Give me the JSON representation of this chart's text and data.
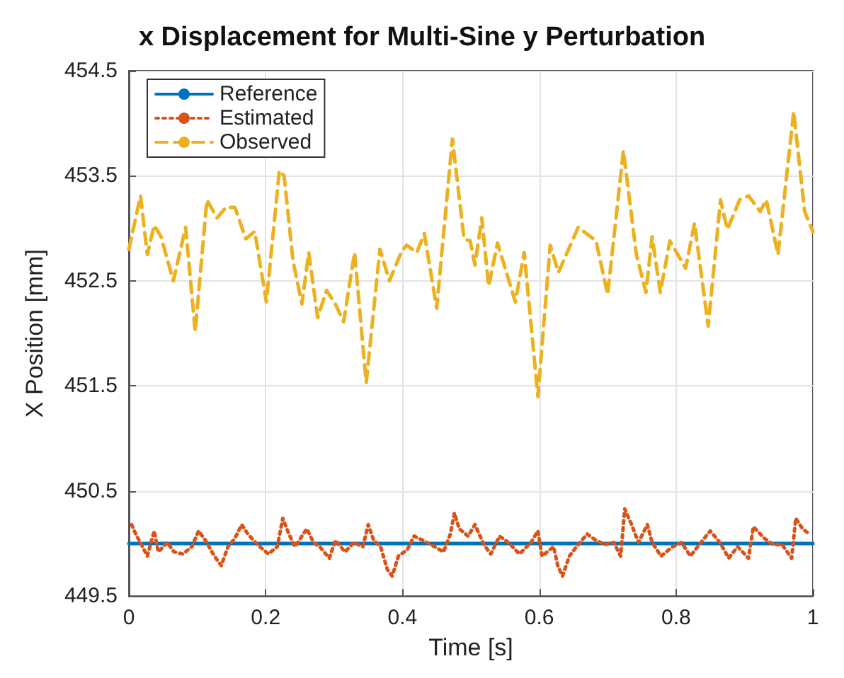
{
  "chart_data": {
    "type": "line",
    "title": "x Displacement for Multi-Sine y Perturbation",
    "xlabel": "Time [s]",
    "ylabel": "X Position [mm]",
    "xlim": [
      0,
      1
    ],
    "xticks": [
      0,
      0.2,
      0.4,
      0.6,
      0.8,
      1
    ],
    "ylim": [
      449.5,
      454.5
    ],
    "yticks": [
      449.5,
      450.5,
      451.5,
      452.5,
      453.5,
      454.5
    ],
    "grid": true,
    "legend": "top left",
    "marker": "none",
    "series": [
      {
        "name": "Reference",
        "color": "#0072bd",
        "line_style": "solid",
        "x": [
          0,
          1
        ],
        "values": [
          450,
          450
        ]
      },
      {
        "name": "Estimated",
        "color": "#d95319",
        "line_style": "dotted",
        "x": [
          0.004,
          0.01,
          0.02,
          0.027,
          0.037,
          0.043,
          0.056,
          0.066,
          0.079,
          0.092,
          0.102,
          0.112,
          0.125,
          0.135,
          0.145,
          0.155,
          0.165,
          0.174,
          0.188,
          0.204,
          0.217,
          0.225,
          0.234,
          0.243,
          0.26,
          0.27,
          0.279,
          0.293,
          0.302,
          0.316,
          0.329,
          0.342,
          0.35,
          0.358,
          0.368,
          0.378,
          0.385,
          0.394,
          0.407,
          0.417,
          0.43,
          0.447,
          0.46,
          0.47,
          0.476,
          0.483,
          0.496,
          0.506,
          0.519,
          0.529,
          0.542,
          0.555,
          0.571,
          0.588,
          0.598,
          0.604,
          0.621,
          0.627,
          0.634,
          0.644,
          0.657,
          0.67,
          0.683,
          0.696,
          0.709,
          0.719,
          0.725,
          0.735,
          0.745,
          0.758,
          0.765,
          0.778,
          0.795,
          0.808,
          0.821,
          0.834,
          0.85,
          0.864,
          0.877,
          0.89,
          0.906,
          0.913,
          0.929,
          0.942,
          0.955,
          0.969,
          0.975,
          0.985,
          0.995
        ],
        "values": [
          450.18,
          450.09,
          449.97,
          449.88,
          450.12,
          449.92,
          450.01,
          449.92,
          449.9,
          449.97,
          450.12,
          450.03,
          449.88,
          449.79,
          449.97,
          450.05,
          450.18,
          450.09,
          449.99,
          449.9,
          449.97,
          450.24,
          450.09,
          449.97,
          450.14,
          450.01,
          449.97,
          449.86,
          450.03,
          449.92,
          450.01,
          449.97,
          450.18,
          450.03,
          449.97,
          449.75,
          449.69,
          449.88,
          449.94,
          450.07,
          450.03,
          449.97,
          449.92,
          450.09,
          450.29,
          450.14,
          450.07,
          450.18,
          449.99,
          449.9,
          450.07,
          450.01,
          449.9,
          450.01,
          450.12,
          449.88,
          449.97,
          449.79,
          449.69,
          449.88,
          449.99,
          450.09,
          450.03,
          449.99,
          450.01,
          449.88,
          450.33,
          450.18,
          450.01,
          450.18,
          450.01,
          449.88,
          449.97,
          450.01,
          449.88,
          449.99,
          450.12,
          450.01,
          449.86,
          449.97,
          449.86,
          450.16,
          450.05,
          449.99,
          449.99,
          449.86,
          450.24,
          450.14,
          450.09
        ]
      },
      {
        "name": "Observed",
        "color": "#edb120",
        "line_style": "dashed",
        "x": [
          0,
          0.017,
          0.027,
          0.037,
          0.047,
          0.065,
          0.083,
          0.097,
          0.114,
          0.129,
          0.142,
          0.155,
          0.171,
          0.184,
          0.201,
          0.22,
          0.227,
          0.24,
          0.253,
          0.263,
          0.276,
          0.289,
          0.302,
          0.314,
          0.33,
          0.347,
          0.367,
          0.381,
          0.398,
          0.406,
          0.421,
          0.432,
          0.45,
          0.473,
          0.49,
          0.499,
          0.506,
          0.516,
          0.526,
          0.539,
          0.565,
          0.578,
          0.598,
          0.616,
          0.628,
          0.657,
          0.683,
          0.7,
          0.723,
          0.742,
          0.756,
          0.765,
          0.777,
          0.791,
          0.814,
          0.827,
          0.847,
          0.865,
          0.875,
          0.893,
          0.906,
          0.923,
          0.932,
          0.949,
          0.972,
          0.988,
          1
        ],
        "values": [
          452.8,
          453.31,
          452.75,
          453.03,
          452.92,
          452.5,
          453.01,
          452.02,
          453.27,
          453.1,
          453.2,
          453.2,
          452.9,
          452.97,
          452.3,
          453.55,
          453.5,
          452.69,
          452.28,
          452.77,
          452.15,
          452.41,
          452.28,
          452.11,
          452.77,
          451.53,
          452.8,
          452.5,
          452.77,
          452.84,
          452.77,
          452.95,
          452.24,
          453.85,
          452.9,
          452.88,
          452.65,
          453.1,
          452.45,
          452.86,
          452.3,
          452.77,
          451.4,
          452.84,
          452.58,
          453.01,
          452.88,
          452.37,
          453.74,
          452.75,
          452.39,
          452.92,
          452.39,
          452.88,
          452.62,
          453.05,
          452.07,
          453.27,
          452.99,
          453.27,
          453.31,
          453.16,
          453.27,
          452.75,
          454.11,
          453.16,
          452.97
        ]
      }
    ]
  }
}
